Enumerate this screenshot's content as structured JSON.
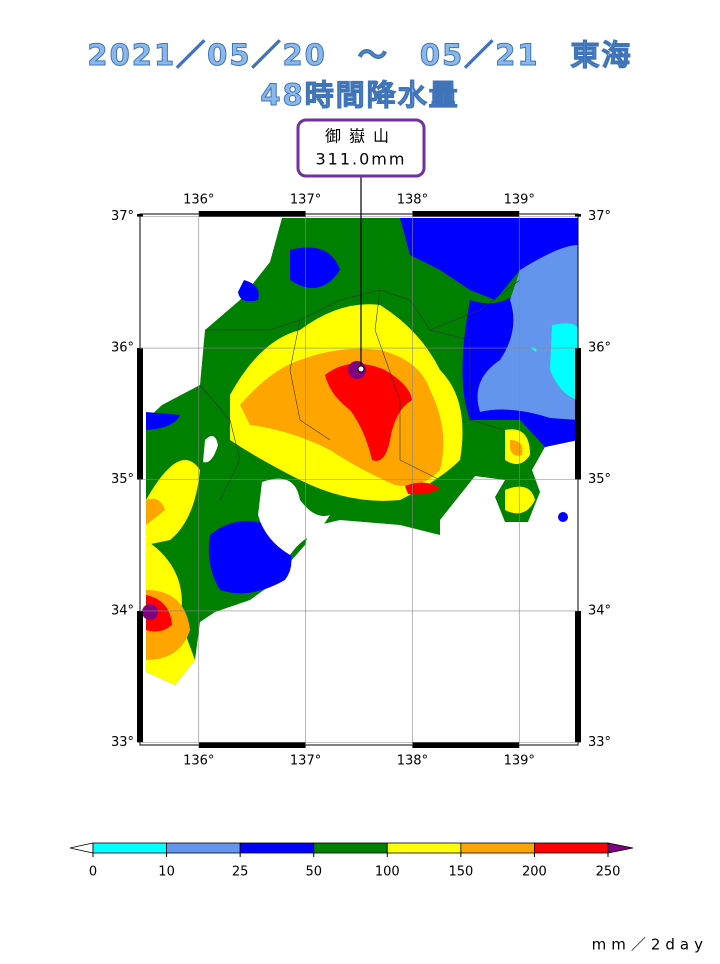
{
  "title": {
    "line1": "2021／05／20　～　05／21　東海",
    "line2": "48時間降水量"
  },
  "callout": {
    "name": "御嶽山",
    "value_label": "311.0mm"
  },
  "map": {
    "lonlim": [
      135.45,
      139.55
    ],
    "latlim": [
      32.98,
      37.02
    ],
    "lon_ticks": [
      {
        "value": 136,
        "label": "136°"
      },
      {
        "value": 137,
        "label": "137°"
      },
      {
        "value": 138,
        "label": "138°"
      },
      {
        "value": 139,
        "label": "139°"
      }
    ],
    "lat_ticks": [
      {
        "value": 33,
        "label": "33°"
      },
      {
        "value": 34,
        "label": "34°"
      },
      {
        "value": 35,
        "label": "35°"
      },
      {
        "value": 36,
        "label": "36°"
      },
      {
        "value": 37,
        "label": "37°"
      }
    ]
  },
  "colorbar": {
    "ticks": [
      0,
      10,
      25,
      50,
      100,
      150,
      200,
      250
    ],
    "colors": [
      "#00ffff",
      "#6495ed",
      "#0000ff",
      "#008000",
      "#ffff00",
      "#ffa500",
      "#ff0000"
    ],
    "under_color": "#ffffff",
    "over_color": "#800080",
    "unit": "mm／2day"
  }
}
